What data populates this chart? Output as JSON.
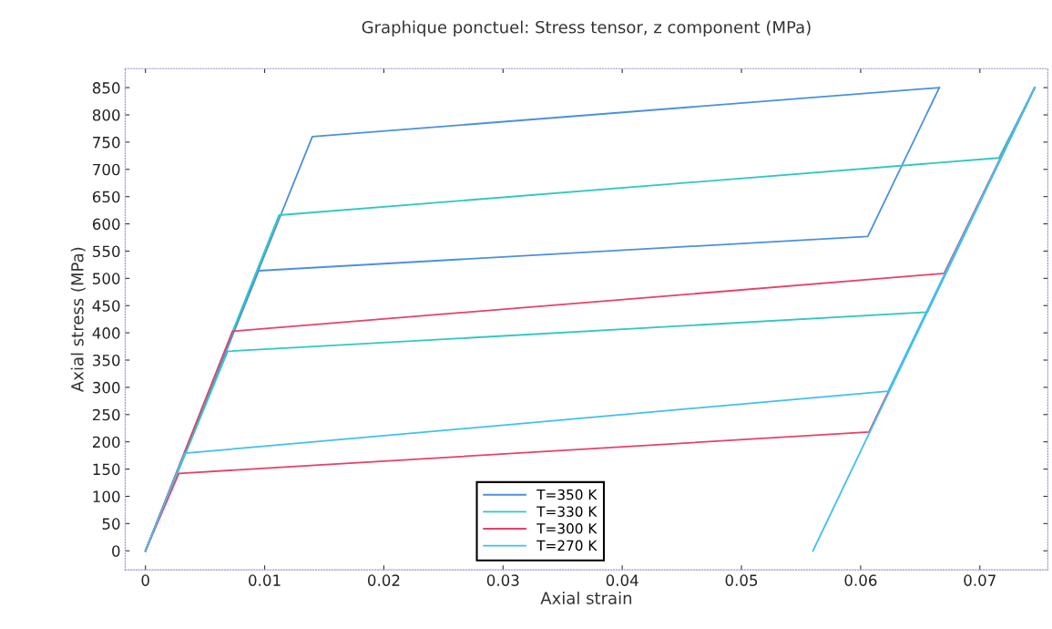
{
  "chart_data": {
    "type": "line",
    "title": "Graphique ponctuel: Stress tensor, z component (MPa)",
    "xlabel": "Axial strain",
    "ylabel": "Axial stress (MPa)",
    "xlim": [
      -0.0017,
      0.0757
    ],
    "ylim": [
      -35,
      885
    ],
    "xticks": [
      0,
      0.01,
      0.02,
      0.03,
      0.04,
      0.05,
      0.06,
      0.07
    ],
    "yticks": [
      0,
      50,
      100,
      150,
      200,
      250,
      300,
      350,
      400,
      450,
      500,
      550,
      600,
      650,
      700,
      750,
      800,
      850
    ],
    "grid": false,
    "legend": "bottom",
    "marker": "none",
    "line_style": "solid",
    "series": [
      {
        "name": "T=350 K",
        "color": "#4a90e0",
        "x": [
          0,
          0.014,
          0.0666
        ],
        "values": [
          0,
          760,
          850
        ]
      },
      {
        "color": "#4a90e0",
        "x": [
          0,
          0.0095,
          0.0606,
          0.0666
        ],
        "values": [
          0,
          514,
          577,
          850
        ]
      },
      {
        "name": "T=330 K",
        "color": "#30c8c0",
        "x": [
          0,
          0.0112,
          0.0716,
          0.0746
        ],
        "values": [
          0,
          616,
          721,
          850
        ]
      },
      {
        "color": "#30c8c0",
        "x": [
          0,
          0.0069,
          0.0656,
          0.0746
        ],
        "values": [
          0,
          366,
          438,
          850
        ]
      },
      {
        "name": "T=300 K",
        "color": "#e8406a",
        "x": [
          0,
          0.0073,
          0.067,
          0.0746
        ],
        "values": [
          0,
          403,
          509,
          850
        ]
      },
      {
        "color": "#e8406a",
        "x": [
          0,
          0.0028,
          0.0607,
          0.0746
        ],
        "values": [
          0,
          142,
          218,
          850
        ]
      },
      {
        "name": "T=270 K",
        "color": "#40c0f0",
        "x": [
          0,
          0.0033,
          0.0623,
          0.0746
        ],
        "values": [
          0,
          179,
          293,
          850
        ]
      },
      {
        "color": "#40c0f0",
        "x": [
          0.056,
          0.0746
        ],
        "values": [
          0,
          850
        ]
      }
    ]
  }
}
